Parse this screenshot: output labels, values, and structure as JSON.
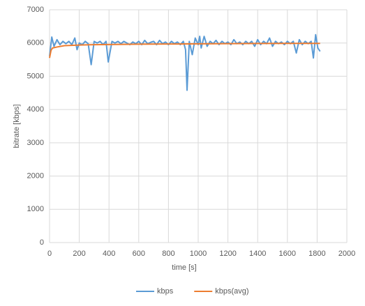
{
  "chart_data": {
    "type": "line",
    "xlabel": "time [s]",
    "ylabel": "bitrate [kbps]",
    "xlim": [
      0,
      2000
    ],
    "ylim": [
      0,
      7000
    ],
    "xticks": [
      0,
      200,
      400,
      600,
      800,
      1000,
      1200,
      1400,
      1600,
      1800,
      2000
    ],
    "yticks": [
      0,
      1000,
      2000,
      3000,
      4000,
      5000,
      6000,
      7000
    ],
    "grid": true,
    "legend": "bottom",
    "series": [
      {
        "name": "kbps",
        "color": "#5b9bd5",
        "x": [
          0,
          15,
          30,
          50,
          70,
          90,
          110,
          130,
          150,
          170,
          185,
          200,
          220,
          240,
          260,
          280,
          300,
          320,
          340,
          360,
          380,
          395,
          420,
          440,
          460,
          480,
          500,
          520,
          540,
          560,
          580,
          600,
          620,
          640,
          660,
          680,
          700,
          720,
          740,
          760,
          780,
          800,
          820,
          840,
          860,
          880,
          900,
          915,
          925,
          940,
          960,
          980,
          1000,
          1010,
          1020,
          1040,
          1060,
          1080,
          1100,
          1120,
          1140,
          1160,
          1180,
          1200,
          1220,
          1240,
          1260,
          1280,
          1300,
          1320,
          1340,
          1360,
          1380,
          1400,
          1420,
          1440,
          1460,
          1480,
          1500,
          1520,
          1540,
          1560,
          1580,
          1600,
          1620,
          1640,
          1660,
          1680,
          1700,
          1720,
          1740,
          1760,
          1775,
          1790,
          1805,
          1820
        ],
        "values": [
          5600,
          6180,
          5900,
          6100,
          5950,
          6050,
          5980,
          6050,
          5950,
          6150,
          5800,
          6000,
          5950,
          6050,
          5980,
          5350,
          6050,
          6000,
          6050,
          5950,
          6050,
          5430,
          6050,
          6000,
          6050,
          5980,
          6050,
          6000,
          5950,
          6030,
          5980,
          6050,
          5950,
          6080,
          5980,
          6020,
          6050,
          5950,
          6080,
          5980,
          6030,
          5950,
          6050,
          5980,
          6030,
          5950,
          6050,
          5800,
          4580,
          6050,
          5650,
          6150,
          5950,
          6200,
          5850,
          6200,
          5900,
          6050,
          5980,
          6080,
          5950,
          6050,
          5980,
          6030,
          5950,
          6100,
          5980,
          6030,
          5950,
          6050,
          5980,
          6050,
          5900,
          6100,
          5950,
          6050,
          5980,
          6150,
          5900,
          6050,
          5980,
          6030,
          5950,
          6050,
          5980,
          6050,
          5700,
          6100,
          5950,
          6050,
          5980,
          6050,
          5550,
          6250,
          5850,
          5750
        ]
      },
      {
        "name": "kbps(avg)",
        "color": "#ed7d31",
        "x": [
          0,
          10,
          20,
          50,
          100,
          200,
          300,
          400,
          600,
          800,
          1000,
          1200,
          1400,
          1600,
          1820
        ],
        "values": [
          5550,
          5780,
          5850,
          5880,
          5920,
          5940,
          5950,
          5955,
          5965,
          5970,
          5975,
          5980,
          5985,
          5988,
          5990
        ]
      }
    ]
  }
}
